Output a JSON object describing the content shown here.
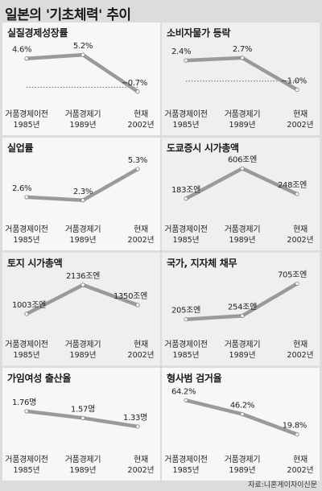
{
  "title": "일본의 '기초체력' 추이",
  "source": "자료:니혼게이자이신문",
  "categories": [
    {
      "line1": "거품경제이전",
      "line2": "1985년"
    },
    {
      "line1": "거품경제기",
      "line2": "1989년"
    },
    {
      "line1": "현재",
      "line2": "2002년"
    }
  ],
  "chart_data": [
    {
      "type": "line",
      "title": "실질경제성장률",
      "x": [
        "1985년",
        "1989년",
        "2002년"
      ],
      "values": [
        4.6,
        5.2,
        -0.7
      ],
      "labels": [
        "4.6%",
        "5.2%",
        "−0.7%"
      ],
      "zero_line": true,
      "ylim": [
        -1.5,
        6.5
      ]
    },
    {
      "type": "line",
      "title": "소비자물가 등락",
      "x": [
        "1985년",
        "1989년",
        "2002년"
      ],
      "values": [
        2.4,
        2.7,
        -1.0
      ],
      "labels": [
        "2.4%",
        "2.7%",
        "−1.0%"
      ],
      "zero_line": true,
      "ylim": [
        -1.8,
        4.0
      ]
    },
    {
      "type": "line",
      "title": "실업률",
      "x": [
        "1985년",
        "1989년",
        "2002년"
      ],
      "values": [
        2.6,
        2.3,
        5.3
      ],
      "labels": [
        "2.6%",
        "2.3%",
        "5.3%"
      ],
      "zero_line": false,
      "ylim": [
        1.2,
        6.0
      ]
    },
    {
      "type": "line",
      "title": "도쿄증시 시가총액",
      "x": [
        "1985년",
        "1989년",
        "2002년"
      ],
      "values": [
        183,
        606,
        248
      ],
      "labels": [
        "183조엔",
        "606조엔",
        "248조엔"
      ],
      "zero_line": false,
      "ylim": [
        0,
        700
      ]
    },
    {
      "type": "line",
      "title": "토지 시가총액",
      "x": [
        "1985년",
        "1989년",
        "2002년"
      ],
      "values": [
        1003,
        2136,
        1350
      ],
      "labels": [
        "1003조엔",
        "2136조엔",
        "1350조엔"
      ],
      "zero_line": false,
      "ylim": [
        500,
        2450
      ]
    },
    {
      "type": "line",
      "title": "국가, 지자체 채무",
      "x": [
        "1985년",
        "1989년",
        "2002년"
      ],
      "values": [
        205,
        254,
        705
      ],
      "labels": [
        "205조엔",
        "254조엔",
        "705조엔"
      ],
      "zero_line": false,
      "ylim": [
        100,
        800
      ]
    },
    {
      "type": "line",
      "title": "가임여성 출산율",
      "x": [
        "1985년",
        "1989년",
        "2002년"
      ],
      "values": [
        1.76,
        1.57,
        1.33
      ],
      "labels": [
        "1.76명",
        "1.57명",
        "1.33명"
      ],
      "zero_line": false,
      "ylim": [
        0.9,
        2.3
      ]
    },
    {
      "type": "line",
      "title": "형사범 검거율",
      "x": [
        "1985년",
        "1989년",
        "2002년"
      ],
      "values": [
        64.2,
        46.2,
        19.8
      ],
      "labels": [
        "64.2%",
        "46.2%",
        "19.8%"
      ],
      "zero_line": false,
      "ylim": [
        10,
        75
      ]
    }
  ],
  "colors": {
    "line": "#9a9a9a",
    "marker": "#ffffff",
    "zero_line": "#666666"
  }
}
